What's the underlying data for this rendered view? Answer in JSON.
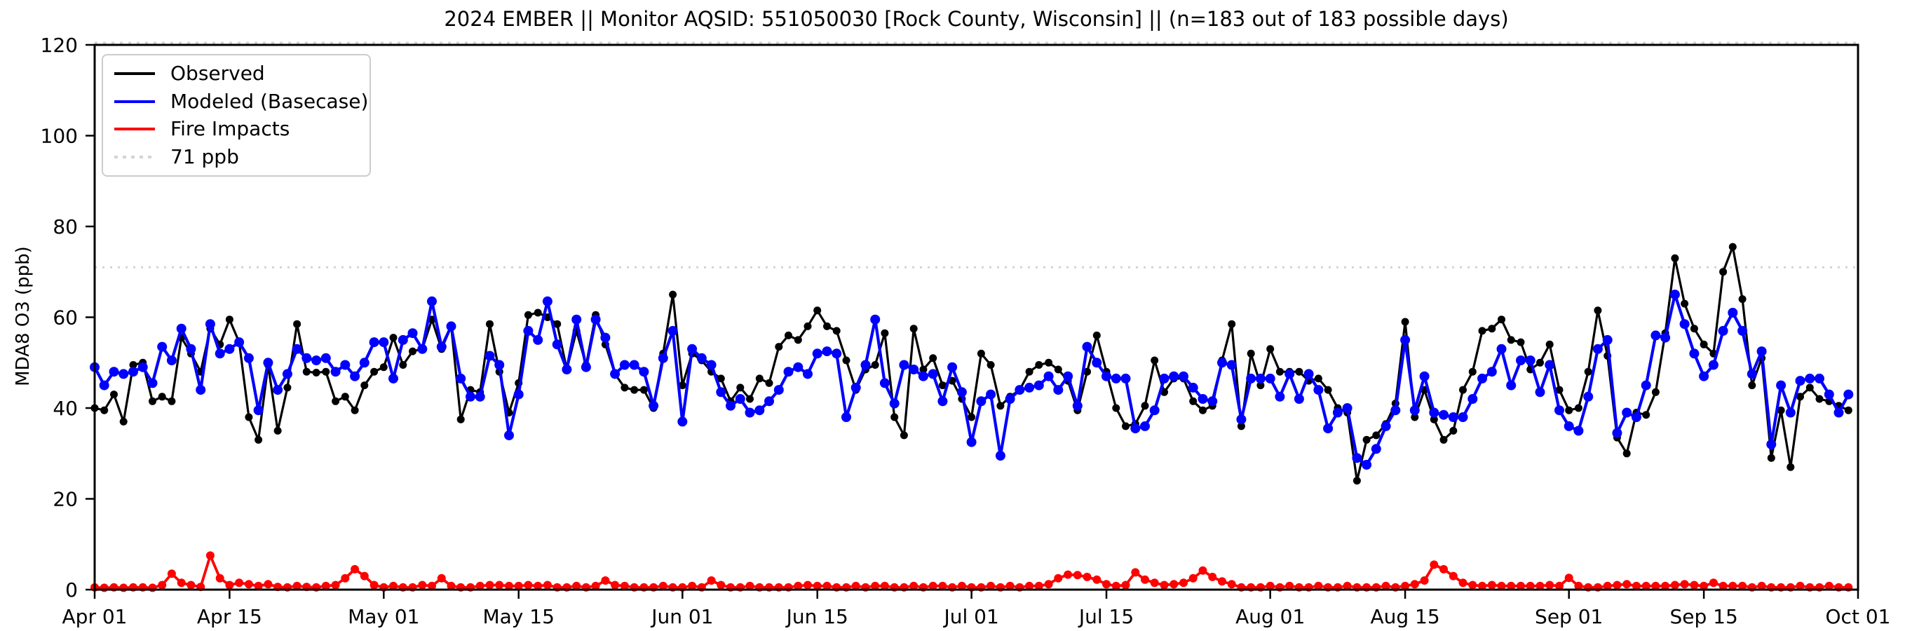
{
  "title": "2024 EMBER || Monitor AQSID: 551050030 [Rock County, Wisconsin] || (n=183 out of 183 possible days)",
  "y_axis": {
    "label": "MDA8 O3 (ppb)",
    "ticks": [
      0,
      20,
      40,
      60,
      80,
      100,
      120
    ],
    "min": 0,
    "max": 120
  },
  "x_axis": {
    "tick_labels": [
      "Apr 01",
      "Apr 15",
      "May 01",
      "May 15",
      "Jun 01",
      "Jun 15",
      "Jul 01",
      "Jul 15",
      "Aug 01",
      "Aug 15",
      "Sep 01",
      "Sep 15",
      "Oct 01"
    ],
    "tick_days": [
      0,
      14,
      30,
      44,
      61,
      75,
      91,
      105,
      122,
      136,
      153,
      167,
      183
    ],
    "total_days": 183
  },
  "threshold": {
    "value": 71,
    "label": "71 ppb",
    "color": "#d3d3d3"
  },
  "legend": {
    "items": [
      {
        "label": "Observed",
        "color": "#000000",
        "style": "solid"
      },
      {
        "label": "Modeled (Basecase)",
        "color": "#0000ff",
        "style": "solid"
      },
      {
        "label": "Fire Impacts",
        "color": "#ff0000",
        "style": "solid"
      },
      {
        "label": "71 ppb",
        "color": "#d3d3d3",
        "style": "dotted"
      }
    ]
  },
  "chart_data": {
    "type": "line",
    "title": "2024 EMBER || Monitor AQSID: 551050030 [Rock County, Wisconsin] || (n=183 out of 183 possible days)",
    "xlabel": "",
    "ylabel": "MDA8 O3 (ppb)",
    "ylim": [
      0,
      120
    ],
    "x_start": "Apr 01",
    "x_end": "Sep 30",
    "x_unit": "daily values, day index 0 = Apr 01",
    "grid": false,
    "legend_position": "upper left",
    "threshold_ppb": 71,
    "series": [
      {
        "name": "Observed",
        "color": "#000000",
        "values": [
          40,
          39.5,
          43,
          37,
          49.5,
          50,
          41.5,
          42.5,
          41.5,
          55.5,
          52,
          48,
          57.5,
          54,
          59.5,
          54.5,
          38,
          33,
          49.5,
          35,
          44.5,
          58.5,
          48,
          47.8,
          48,
          41.5,
          42.5,
          39.5,
          45,
          48,
          49,
          55.5,
          49.5,
          52.5,
          53,
          59.5,
          53,
          58,
          37.5,
          44,
          43.5,
          58.5,
          48,
          39,
          45.5,
          60.5,
          61,
          60,
          58.5,
          48.5,
          57,
          49.5,
          60.5,
          54,
          47.5,
          44.5,
          44,
          44,
          40,
          52,
          65,
          45,
          52,
          50.5,
          48,
          46.5,
          41.5,
          44.5,
          42,
          46.5,
          45.5,
          53.5,
          56,
          55,
          58,
          61.5,
          58,
          57,
          50.5,
          44,
          48.5,
          49.5,
          56.5,
          38,
          34,
          57.5,
          48.5,
          51,
          45,
          46,
          42,
          38,
          52,
          49.5,
          40.5,
          42.5,
          44,
          48,
          49.5,
          50,
          48.5,
          46,
          39.5,
          48,
          56,
          48,
          40,
          36,
          36.5,
          40.5,
          50.5,
          43.5,
          46.5,
          46.5,
          41.5,
          39.5,
          40.5,
          50.5,
          58.5,
          36,
          52,
          45,
          53,
          48,
          48,
          48,
          46,
          46.5,
          44,
          40,
          39,
          24,
          33,
          34,
          36.5,
          41,
          59,
          38,
          44,
          37.5,
          33,
          35,
          44,
          48,
          57,
          57.5,
          59.5,
          55,
          54.5,
          48.5,
          50,
          54,
          44,
          39.5,
          40,
          48,
          61.5,
          51.5,
          33.5,
          30,
          39,
          38.5,
          43.5,
          56.5,
          73,
          63,
          57.5,
          54,
          52,
          70,
          75.5,
          64,
          45,
          51,
          29,
          39.5,
          27,
          42.5,
          44.5,
          42,
          41.5,
          40.5,
          39.5
        ]
      },
      {
        "name": "Modeled (Basecase)",
        "color": "#0000ff",
        "values": [
          49,
          45,
          48,
          47.5,
          48,
          49,
          45.5,
          53.5,
          50.5,
          57.5,
          53,
          44,
          58.5,
          52,
          53,
          54.5,
          51,
          39.5,
          50,
          44,
          47.5,
          53,
          51,
          50.5,
          51,
          48,
          49.5,
          47,
          50,
          54.5,
          54.5,
          46.5,
          55,
          56.5,
          53,
          63.5,
          53.5,
          58,
          46.5,
          42.5,
          42.5,
          51.5,
          49.5,
          34,
          43,
          57,
          55,
          63.5,
          54,
          48.5,
          59.5,
          49,
          59.5,
          55.5,
          47.5,
          49.5,
          49.5,
          48,
          40.5,
          51,
          57,
          37,
          53,
          51,
          49.5,
          43.5,
          40.5,
          42,
          39,
          39.5,
          41.5,
          44,
          48,
          49,
          47.5,
          52,
          52.5,
          52,
          38,
          44.5,
          49.5,
          59.5,
          45.5,
          41,
          49.5,
          48.5,
          47,
          47.5,
          41.5,
          49,
          43.5,
          32.5,
          41.5,
          43,
          29.5,
          42,
          44,
          44.5,
          45,
          47,
          44,
          47,
          40.5,
          53.5,
          50,
          47,
          46.5,
          46.5,
          35.5,
          36,
          39.5,
          46.5,
          47,
          47,
          44.5,
          42,
          41.5,
          50,
          49.5,
          37.5,
          46.5,
          46.5,
          46.5,
          42.5,
          47.5,
          42,
          47.5,
          44,
          35.5,
          39,
          40,
          29,
          27.5,
          31,
          36,
          39.5,
          55,
          39.5,
          47,
          39,
          38.5,
          38,
          38,
          42,
          46.5,
          48,
          53,
          45,
          50.5,
          50.5,
          43.5,
          49.5,
          39.5,
          36,
          35,
          42.5,
          53,
          55,
          34.5,
          39,
          38,
          45,
          56,
          55.5,
          65,
          58.5,
          52,
          47,
          49.5,
          57,
          61,
          57,
          47.5,
          52.5,
          32,
          45,
          39,
          46,
          46.5,
          46.5,
          43,
          39,
          43
        ]
      },
      {
        "name": "Fire Impacts",
        "color": "#ff0000",
        "values": [
          0.5,
          0.4,
          0.5,
          0.4,
          0.5,
          0.5,
          0.4,
          1,
          3.5,
          1.5,
          1,
          0.6,
          7.5,
          2.5,
          1,
          1.5,
          1.2,
          0.8,
          1.2,
          0.6,
          0.5,
          0.8,
          0.6,
          0.5,
          0.8,
          1,
          2.5,
          4.5,
          3,
          1,
          0.5,
          0.8,
          0.5,
          0.5,
          1,
          0.8,
          2.5,
          0.8,
          0.5,
          0.5,
          0.8,
          1,
          1,
          0.8,
          0.8,
          1,
          0.8,
          1,
          0.5,
          0.5,
          0.8,
          0.5,
          0.8,
          2,
          1,
          0.8,
          0.5,
          0.5,
          0.5,
          0.8,
          0.5,
          0.5,
          0.8,
          0.5,
          2,
          1,
          0.5,
          0.5,
          0.8,
          0.5,
          0.5,
          0.5,
          0.5,
          0.8,
          1,
          0.8,
          0.8,
          0.5,
          0.5,
          0.8,
          0.5,
          0.8,
          0.8,
          0.5,
          0.5,
          0.8,
          0.5,
          0.8,
          0.8,
          0.5,
          0.8,
          0.5,
          0.5,
          0.8,
          0.5,
          0.8,
          0.5,
          0.8,
          0.8,
          1.2,
          2.5,
          3.3,
          3.2,
          2.8,
          2.2,
          1.2,
          0.8,
          1,
          3.8,
          2.2,
          1.5,
          1,
          1.2,
          1.5,
          2.5,
          4.2,
          2.8,
          1.8,
          1.2,
          0.5,
          0.5,
          0.5,
          0.8,
          0.5,
          0.8,
          0.5,
          0.5,
          0.8,
          0.5,
          0.5,
          0.8,
          0.5,
          0.5,
          0.5,
          0.8,
          0.5,
          0.8,
          1.2,
          2,
          5.5,
          4.5,
          3,
          1.5,
          1,
          0.8,
          1,
          0.8,
          0.8,
          0.8,
          0.8,
          0.8,
          1,
          0.8,
          2.6,
          0.8,
          0.5,
          0.5,
          0.8,
          1,
          1.2,
          0.8,
          0.8,
          0.8,
          0.8,
          1,
          1.2,
          1,
          0.8,
          1.5,
          0.8,
          0.8,
          0.8,
          0.5,
          0.8,
          0.5,
          0.5,
          0.5,
          0.8,
          0.5,
          0.5,
          0.8,
          0.5,
          0.5
        ]
      }
    ]
  }
}
